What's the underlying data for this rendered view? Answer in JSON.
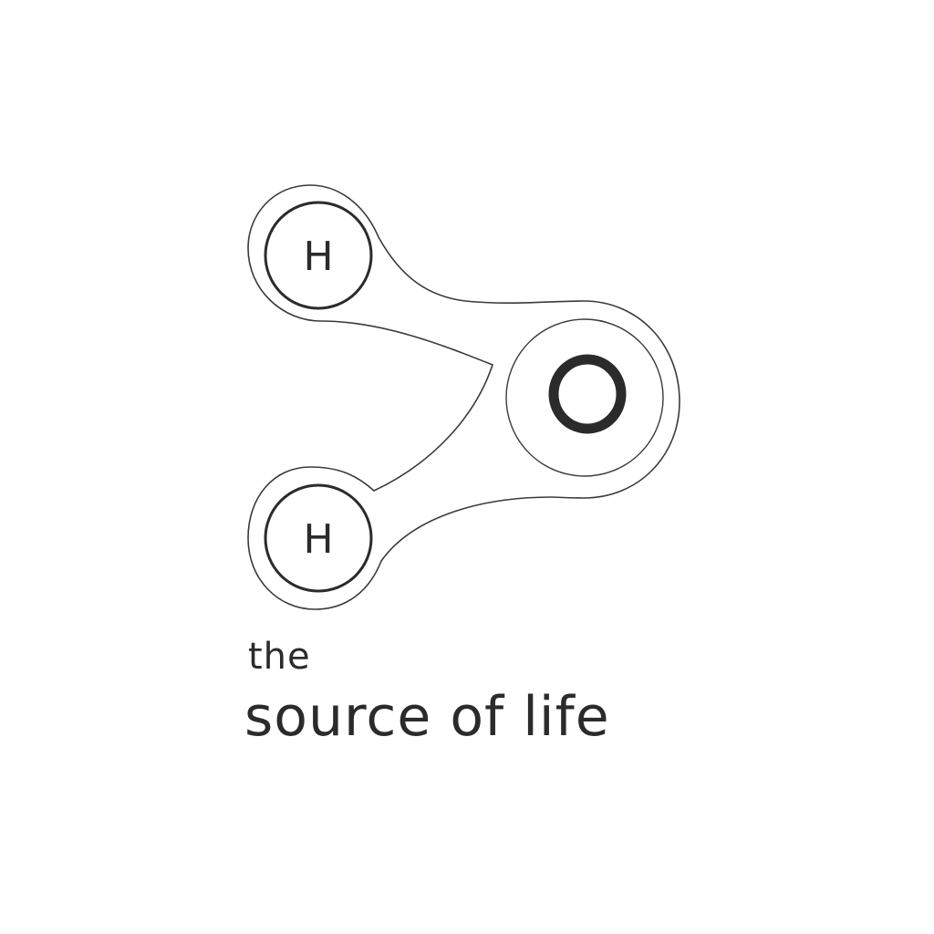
{
  "logo": {
    "atoms": [
      {
        "id": "hydrogen-top",
        "symbol": "H"
      },
      {
        "id": "oxygen",
        "symbol": "O"
      },
      {
        "id": "hydrogen-bottom",
        "symbol": "H"
      }
    ]
  },
  "tagline": {
    "line1": "the",
    "line2": "source of life"
  },
  "colors": {
    "background": "#ffffff",
    "ink": "#2b2b2b",
    "outline": "#3a3a3a"
  }
}
